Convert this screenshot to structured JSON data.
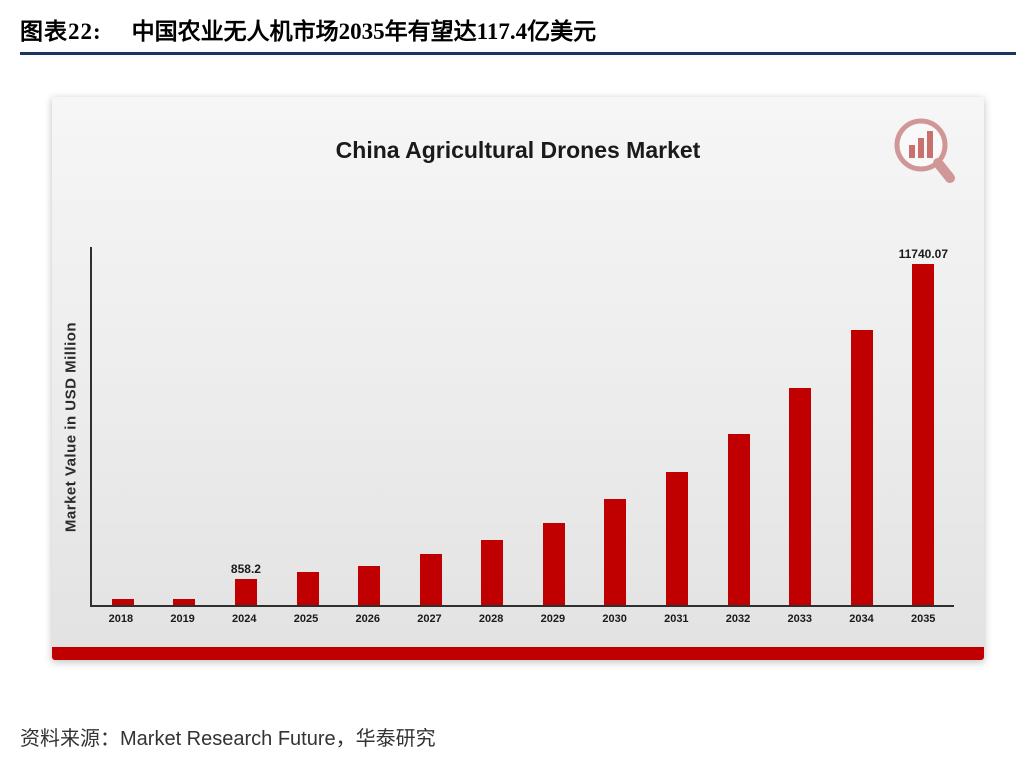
{
  "header": {
    "fig_label": "图表22:",
    "title": "中国农业无人机市场2035年有望达117.4亿美元"
  },
  "footer": {
    "prefix": "资料来源：",
    "source": "Market Research Future",
    "suffix": "，华泰研究"
  },
  "colors": {
    "bar": "#c00000",
    "strip": "#c00000",
    "underline": "#17375e"
  },
  "chart_data": {
    "type": "bar",
    "title": "China Agricultural Drones Market",
    "xlabel": "",
    "ylabel": "Market Value in USD Million",
    "categories": [
      "2018",
      "2019",
      "2024",
      "2025",
      "2026",
      "2027",
      "2028",
      "2029",
      "2030",
      "2031",
      "2032",
      "2033",
      "2034",
      "2035"
    ],
    "values": [
      200,
      215,
      858.2,
      1090,
      1310,
      1710,
      2180,
      2760,
      3550,
      4460,
      5730,
      7280,
      9230,
      11740.07
    ],
    "ylim": [
      0,
      12000
    ],
    "data_labels": {
      "2024": "858.2",
      "2035": "11740.07"
    },
    "grid": false,
    "legend": false
  }
}
